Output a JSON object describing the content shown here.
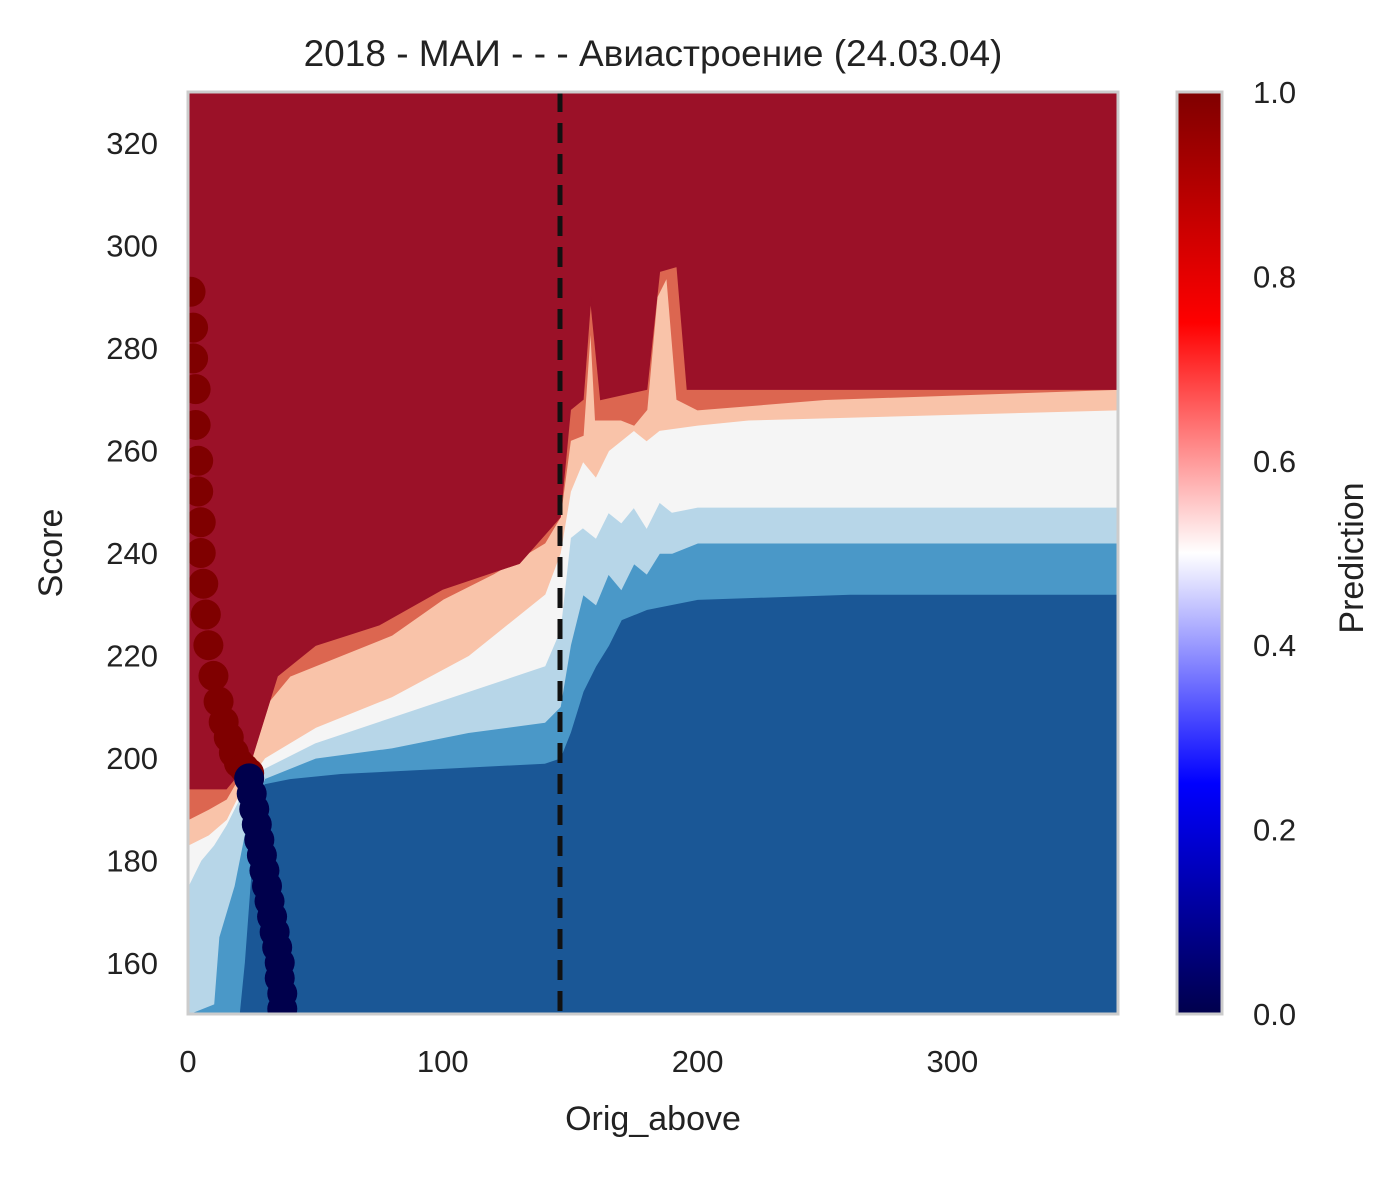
{
  "chart_data": {
    "type": "heatmap",
    "title": "2018 - МАИ - - - Авиастроение (24.03.04)",
    "xlabel": "Orig_above",
    "ylabel": "Score",
    "xlim": [
      0,
      365
    ],
    "ylim": [
      150,
      330
    ],
    "xticks": [
      0,
      100,
      200,
      300
    ],
    "yticks": [
      160,
      180,
      200,
      220,
      240,
      260,
      280,
      300,
      320
    ],
    "threshold_line": {
      "x": 146,
      "style": "dashed",
      "color": "#111111"
    },
    "contour_levels": [
      0.0,
      0.125,
      0.25,
      0.375,
      0.5,
      0.625,
      0.75,
      0.875,
      1.0
    ],
    "band_colors": [
      "#1a5796",
      "#4a98c8",
      "#b7d6e8",
      "#f5f5f5",
      "#f9c3a9",
      "#dc6650",
      "#9b1128"
    ],
    "boundaries": [
      {
        "level": 0.15,
        "points": [
          [
            0,
            150
          ],
          [
            20,
            150
          ],
          [
            22,
            160
          ],
          [
            25,
            180
          ],
          [
            26,
            192
          ],
          [
            30,
            195
          ],
          [
            40,
            196
          ],
          [
            60,
            197
          ],
          [
            100,
            198
          ],
          [
            140,
            199
          ],
          [
            146,
            200
          ],
          [
            150,
            205
          ],
          [
            155,
            213
          ],
          [
            160,
            218
          ],
          [
            165,
            222
          ],
          [
            170,
            227
          ],
          [
            180,
            229
          ],
          [
            200,
            231
          ],
          [
            260,
            232
          ],
          [
            365,
            232
          ]
        ]
      },
      {
        "level": 0.3,
        "points": [
          [
            0,
            150
          ],
          [
            10,
            152
          ],
          [
            12,
            165
          ],
          [
            18,
            175
          ],
          [
            22,
            185
          ],
          [
            30,
            196
          ],
          [
            50,
            200
          ],
          [
            80,
            202
          ],
          [
            110,
            205
          ],
          [
            140,
            207
          ],
          [
            146,
            210
          ],
          [
            150,
            222
          ],
          [
            155,
            232
          ],
          [
            160,
            230
          ],
          [
            165,
            236
          ],
          [
            170,
            233
          ],
          [
            175,
            238
          ],
          [
            180,
            236
          ],
          [
            185,
            240
          ],
          [
            190,
            240
          ],
          [
            200,
            242
          ],
          [
            365,
            242
          ]
        ]
      },
      {
        "level": 0.45,
        "points": [
          [
            0,
            175
          ],
          [
            5,
            180
          ],
          [
            10,
            183
          ],
          [
            15,
            187
          ],
          [
            20,
            192
          ],
          [
            30,
            198
          ],
          [
            50,
            203
          ],
          [
            80,
            208
          ],
          [
            110,
            213
          ],
          [
            140,
            218
          ],
          [
            146,
            225
          ],
          [
            150,
            243
          ],
          [
            155,
            245
          ],
          [
            160,
            243
          ],
          [
            165,
            248
          ],
          [
            170,
            246
          ],
          [
            175,
            249
          ],
          [
            180,
            245
          ],
          [
            185,
            250
          ],
          [
            190,
            248
          ],
          [
            200,
            249
          ],
          [
            365,
            249
          ]
        ]
      },
      {
        "level": 0.55,
        "points": [
          [
            0,
            183
          ],
          [
            8,
            185
          ],
          [
            15,
            188
          ],
          [
            20,
            193
          ],
          [
            30,
            200
          ],
          [
            50,
            206
          ],
          [
            80,
            212
          ],
          [
            110,
            220
          ],
          [
            140,
            232
          ],
          [
            146,
            240
          ],
          [
            150,
            252
          ],
          [
            155,
            258
          ],
          [
            160,
            255
          ],
          [
            165,
            260
          ],
          [
            170,
            262
          ],
          [
            175,
            264
          ],
          [
            180,
            262
          ],
          [
            185,
            264
          ],
          [
            200,
            265
          ],
          [
            220,
            266
          ],
          [
            365,
            268
          ]
        ]
      },
      {
        "level": 0.7,
        "points": [
          [
            0,
            188
          ],
          [
            8,
            190
          ],
          [
            15,
            192
          ],
          [
            22,
            198
          ],
          [
            30,
            210
          ],
          [
            40,
            216
          ],
          [
            60,
            220
          ],
          [
            80,
            224
          ],
          [
            100,
            231
          ],
          [
            120,
            236
          ],
          [
            140,
            242
          ],
          [
            146,
            247
          ],
          [
            150,
            262
          ],
          [
            155,
            263
          ],
          [
            158,
            285
          ],
          [
            160,
            266
          ],
          [
            170,
            266
          ],
          [
            175,
            265
          ],
          [
            180,
            268
          ],
          [
            184,
            290
          ],
          [
            188,
            294
          ],
          [
            192,
            270
          ],
          [
            200,
            268
          ],
          [
            250,
            270
          ],
          [
            365,
            272
          ]
        ]
      },
      {
        "level": 0.85,
        "points": [
          [
            0,
            194
          ],
          [
            15,
            194
          ],
          [
            25,
            200
          ],
          [
            35,
            216
          ],
          [
            50,
            222
          ],
          [
            75,
            226
          ],
          [
            100,
            233
          ],
          [
            130,
            238
          ],
          [
            146,
            247
          ],
          [
            150,
            268
          ],
          [
            155,
            270
          ],
          [
            158,
            290
          ],
          [
            162,
            270
          ],
          [
            180,
            272
          ],
          [
            185,
            295
          ],
          [
            192,
            296
          ],
          [
            196,
            272
          ],
          [
            365,
            272
          ]
        ]
      }
    ],
    "scatter_high": [
      {
        "x": 1,
        "y": 291
      },
      {
        "x": 2,
        "y": 284
      },
      {
        "x": 2,
        "y": 278
      },
      {
        "x": 3,
        "y": 272
      },
      {
        "x": 3,
        "y": 265
      },
      {
        "x": 4,
        "y": 258
      },
      {
        "x": 4,
        "y": 252
      },
      {
        "x": 5,
        "y": 246
      },
      {
        "x": 5,
        "y": 240
      },
      {
        "x": 6,
        "y": 234
      },
      {
        "x": 7,
        "y": 228
      },
      {
        "x": 8,
        "y": 222
      },
      {
        "x": 10,
        "y": 216
      },
      {
        "x": 12,
        "y": 211
      },
      {
        "x": 14,
        "y": 207
      },
      {
        "x": 16,
        "y": 204
      },
      {
        "x": 18,
        "y": 201
      },
      {
        "x": 20,
        "y": 199
      },
      {
        "x": 22,
        "y": 198
      },
      {
        "x": 24,
        "y": 197
      }
    ],
    "scatter_low": [
      {
        "x": 24,
        "y": 196
      },
      {
        "x": 25,
        "y": 193
      },
      {
        "x": 26,
        "y": 190
      },
      {
        "x": 27,
        "y": 187
      },
      {
        "x": 28,
        "y": 184
      },
      {
        "x": 29,
        "y": 181
      },
      {
        "x": 30,
        "y": 178
      },
      {
        "x": 31,
        "y": 175
      },
      {
        "x": 32,
        "y": 172
      },
      {
        "x": 33,
        "y": 169
      },
      {
        "x": 34,
        "y": 166
      },
      {
        "x": 35,
        "y": 163
      },
      {
        "x": 36,
        "y": 160
      },
      {
        "x": 36,
        "y": 157
      },
      {
        "x": 37,
        "y": 154
      },
      {
        "x": 37,
        "y": 151
      }
    ],
    "colorbar": {
      "label": "Prediction",
      "range": [
        0,
        1
      ],
      "ticks": [
        "0.0",
        "0.2",
        "0.4",
        "0.6",
        "0.8",
        "1.0"
      ],
      "cmap_stops": [
        {
          "offset": 0.0,
          "color": "#00004c"
        },
        {
          "offset": 0.25,
          "color": "#0000ff"
        },
        {
          "offset": 0.5,
          "color": "#ffffff"
        },
        {
          "offset": 0.75,
          "color": "#ff0000"
        },
        {
          "offset": 1.0,
          "color": "#7f0000"
        }
      ]
    },
    "grid": false,
    "legend": "none"
  }
}
